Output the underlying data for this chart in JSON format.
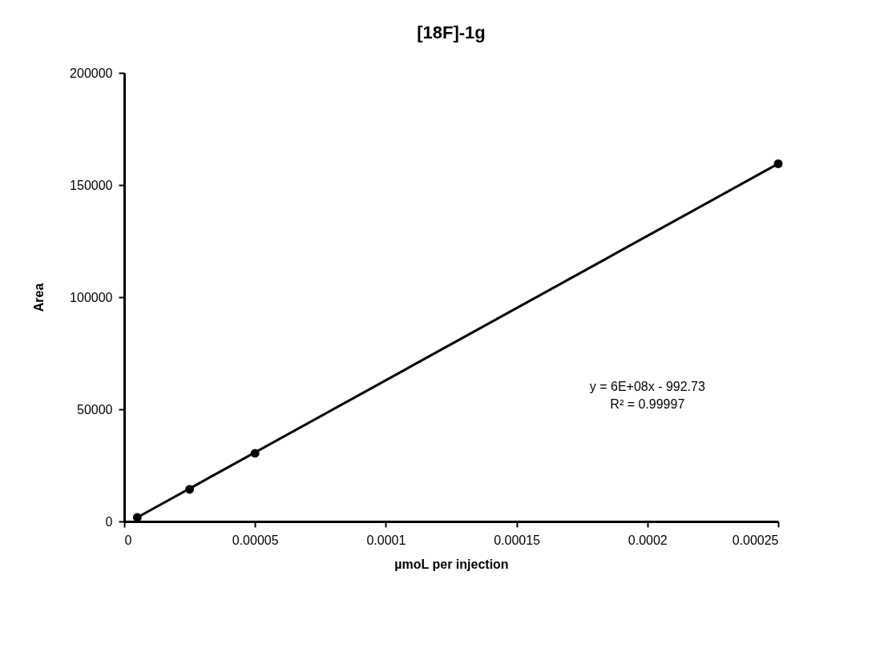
{
  "chart_data": {
    "type": "scatter",
    "title": "[18F]-1g",
    "xlabel": "µmoL per injection",
    "ylabel": "Area",
    "x": [
      5e-06,
      2.5e-05,
      5e-05,
      0.00025
    ],
    "series": [
      {
        "color": "#000000",
        "values": [
          1800,
          14300,
          30400,
          159500
        ],
        "marker": "circle"
      },
      {
        "type": "line",
        "color": "#000000",
        "x": [
          5e-06,
          0.00025
        ],
        "values": [
          1800,
          159500
        ],
        "line_style": "solid"
      }
    ],
    "xlim": [
      0,
      0.00025
    ],
    "xticks": [
      0,
      {
        "value": 5e-05,
        "label": "0.00005"
      },
      0.0001,
      0.00015,
      0.0002,
      0.00025
    ],
    "ylim": [
      0,
      200000
    ],
    "yticks": [
      0,
      50000,
      100000,
      150000,
      200000
    ],
    "grid": false,
    "annotations": [
      "y = 6E+08x - 992.73",
      "R² = 0.99997"
    ]
  }
}
